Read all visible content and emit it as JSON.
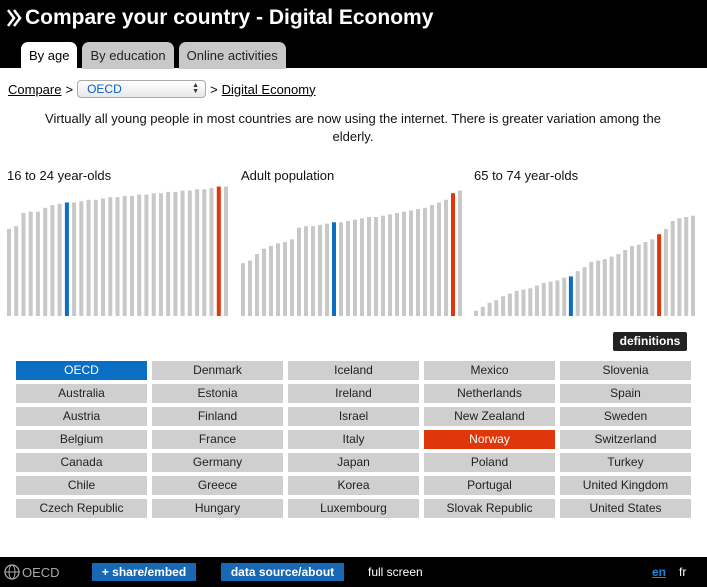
{
  "header": {
    "title": "Compare your country - Digital Economy",
    "tabs": [
      {
        "label": "By age",
        "active": true
      },
      {
        "label": "By education",
        "active": false
      },
      {
        "label": "Online activities",
        "active": false
      }
    ]
  },
  "breadcrumb": {
    "compare": "Compare",
    "separator": ">",
    "selected": "OECD",
    "page": "Digital Economy"
  },
  "description": "Virtually all young people in most countries are now using the internet. There is greater variation among the elderly.",
  "charts": [
    {
      "title": "16 to 24 year-olds"
    },
    {
      "title": "Adult population"
    },
    {
      "title": "65 to 74 year-olds"
    }
  ],
  "colors": {
    "bar": "#c8c8c8",
    "highlight_blue": "#0a6fc2",
    "highlight_red": "#e0360c"
  },
  "chart_data": [
    {
      "type": "bar",
      "title": "16 to 24 year-olds",
      "values": [
        66,
        68,
        78,
        79,
        79,
        82,
        84,
        85,
        86,
        86,
        87,
        88,
        88,
        89,
        90,
        90,
        91,
        91,
        92,
        92,
        93,
        93,
        94,
        94,
        95,
        95,
        96,
        96,
        97,
        98,
        98
      ],
      "highlight_blue_index": 8,
      "highlight_red_index": 29,
      "ylim": [
        0,
        100
      ]
    },
    {
      "type": "bar",
      "title": "Adult population",
      "values": [
        40,
        42,
        47,
        51,
        53,
        55,
        56,
        58,
        67,
        68,
        68,
        69,
        70,
        71,
        71,
        72,
        73,
        74,
        75,
        75,
        76,
        77,
        78,
        79,
        80,
        81,
        82,
        84,
        86,
        88,
        93,
        95
      ],
      "highlight_blue_index": 13,
      "highlight_red_index": 30,
      "ylim": [
        0,
        100
      ]
    },
    {
      "type": "bar",
      "title": "65 to 74 year-olds",
      "values": [
        4,
        7,
        10,
        12,
        15,
        17,
        19,
        20,
        21,
        23,
        25,
        26,
        27,
        29,
        30,
        34,
        37,
        41,
        42,
        43,
        45,
        47,
        50,
        53,
        54,
        56,
        58,
        62,
        66,
        72,
        74,
        75,
        76
      ],
      "highlight_blue_index": 14,
      "highlight_red_index": 27,
      "ylim": [
        0,
        100
      ]
    }
  ],
  "definitions_label": "definitions",
  "countries": [
    "OECD",
    "Denmark",
    "Iceland",
    "Mexico",
    "Slovenia",
    "Australia",
    "Estonia",
    "Ireland",
    "Netherlands",
    "Spain",
    "Austria",
    "Finland",
    "Israel",
    "New Zealand",
    "Sweden",
    "Belgium",
    "France",
    "Italy",
    "Norway",
    "Switzerland",
    "Canada",
    "Germany",
    "Japan",
    "Poland",
    "Turkey",
    "Chile",
    "Greece",
    "Korea",
    "Portugal",
    "United Kingdom",
    "Czech Republic",
    "Hungary",
    "Luxembourg",
    "Slovak Republic",
    "United States"
  ],
  "selected_blue": "OECD",
  "selected_red": "Norway",
  "footer": {
    "logo": "OECD",
    "share": "+ share/embed",
    "data_source": "data source/about",
    "full_screen": "full screen",
    "lang_en": "en",
    "lang_fr": "fr"
  }
}
